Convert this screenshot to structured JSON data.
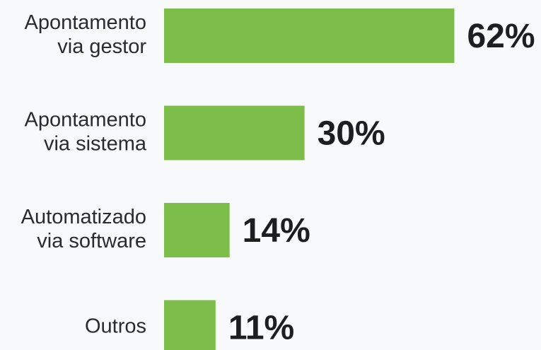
{
  "chart_data": {
    "type": "bar",
    "orientation": "horizontal",
    "categories": [
      [
        "Apontamento",
        "via gestor"
      ],
      [
        "Apontamento",
        "via sistema"
      ],
      [
        "Automatizado",
        "via software"
      ],
      [
        "Outros"
      ]
    ],
    "values": [
      62,
      30,
      14,
      11
    ],
    "value_labels": [
      "62%",
      "30%",
      "14%",
      "11%"
    ],
    "color": "#7dbe4b"
  }
}
